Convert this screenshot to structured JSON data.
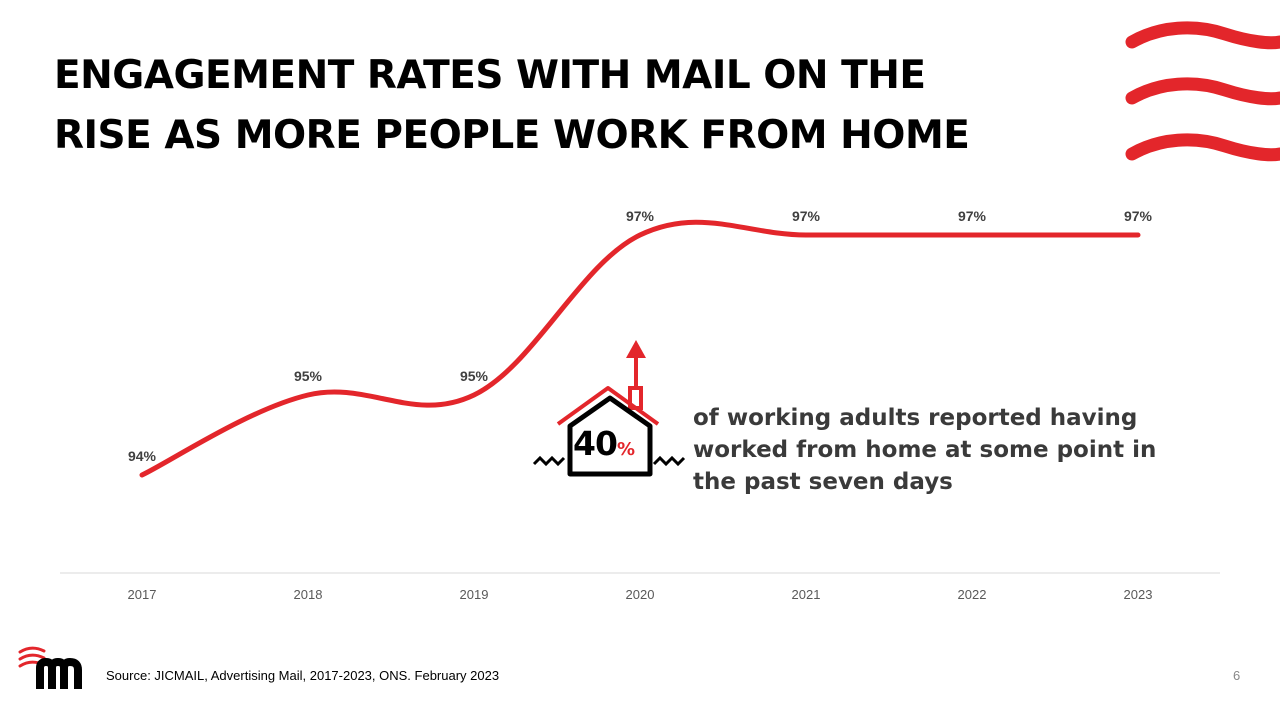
{
  "title_lines": [
    "ENGAGEMENT RATES WITH MAIL ON THE",
    "RISE AS MORE PEOPLE WORK FROM HOME"
  ],
  "chart_data": {
    "type": "line",
    "x": [
      "2017",
      "2018",
      "2019",
      "2020",
      "2021",
      "2022",
      "2023"
    ],
    "values": [
      94,
      95,
      95,
      97,
      97,
      97,
      97
    ],
    "data_labels": [
      "94%",
      "95%",
      "95%",
      "97%",
      "97%",
      "97%",
      "97%"
    ],
    "title": "",
    "xlabel": "",
    "ylabel": "",
    "ylim": [
      92,
      98
    ],
    "grid": false,
    "line_color": "#e3262b",
    "axis_color": "#d9d9d9"
  },
  "callout": {
    "number": "40",
    "unit": "%",
    "text": "of working adults reported having worked from home at some point in the past seven days",
    "icon": "house-with-up-arrow-icon"
  },
  "footer": {
    "source": "Source:  JICMAIL, Advertising Mail, 2017-2023, ONS. February 2023",
    "page_number": "6",
    "logo_letter": "m"
  },
  "colors": {
    "accent": "#e3262b",
    "text": "#000000",
    "muted_text": "#3a3a3a"
  }
}
